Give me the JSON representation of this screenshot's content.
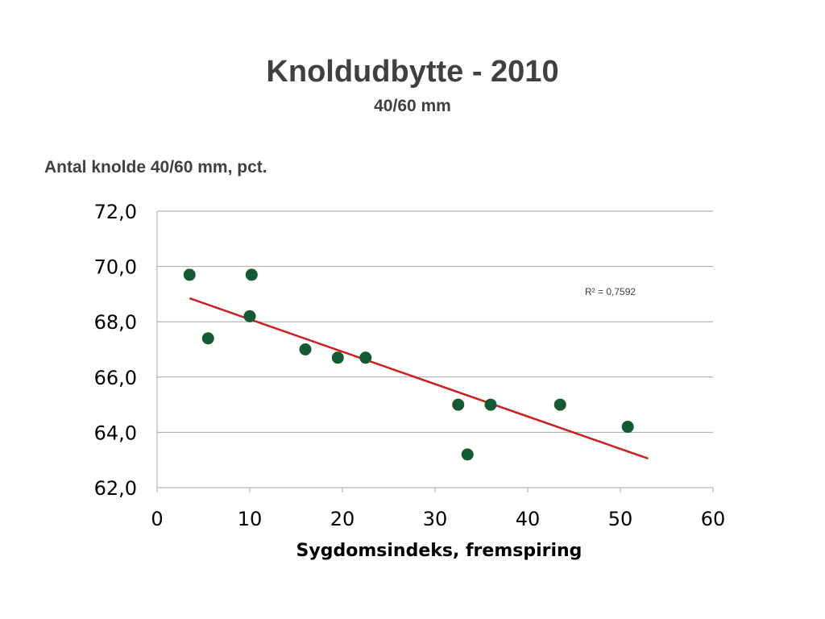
{
  "slide": {
    "title": "Knoldudbytte - 2010",
    "subtitle": "40/60 mm"
  },
  "chart_data": {
    "type": "scatter",
    "ylabel": "Antal knolde 40/60 mm, pct.",
    "xlabel": "Sygdomsindeks, fremspiring",
    "xlim": [
      0,
      60
    ],
    "ylim": [
      62.0,
      72.0
    ],
    "x_ticks": [
      0,
      10,
      20,
      30,
      40,
      50,
      60
    ],
    "y_ticks": [
      "62,0",
      "64,0",
      "66,0",
      "68,0",
      "70,0",
      "72,0"
    ],
    "y_tick_values": [
      62,
      64,
      66,
      68,
      70,
      72
    ],
    "grid": "horizontal",
    "points": [
      {
        "x": 3.5,
        "y": 69.7
      },
      {
        "x": 10.2,
        "y": 69.7
      },
      {
        "x": 10.0,
        "y": 68.2
      },
      {
        "x": 5.5,
        "y": 67.4
      },
      {
        "x": 16.0,
        "y": 67.0
      },
      {
        "x": 19.5,
        "y": 66.7
      },
      {
        "x": 22.5,
        "y": 66.7
      },
      {
        "x": 32.5,
        "y": 65.0
      },
      {
        "x": 36.0,
        "y": 65.0
      },
      {
        "x": 43.5,
        "y": 65.0
      },
      {
        "x": 33.5,
        "y": 63.2
      },
      {
        "x": 50.8,
        "y": 64.2
      }
    ],
    "trendline": {
      "x": [
        3.5,
        53.0
      ],
      "y": [
        68.85,
        63.05
      ]
    },
    "annotation": "R² = 0,7592",
    "colors": {
      "points": "#145a32",
      "trendline": "#cc2020",
      "grid": "#a6a6a6",
      "axis": "#a6a6a6"
    }
  }
}
